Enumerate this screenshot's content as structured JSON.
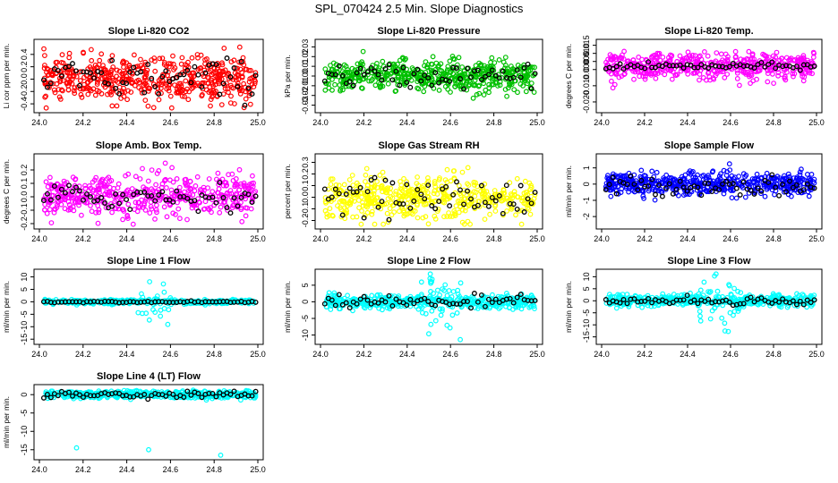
{
  "title": "SPL_070424  2.5 Min. Slope Diagnostics",
  "colors": {
    "red": "#ff0000",
    "green": "#00c000",
    "magenta": "#ff00ff",
    "yellow": "#ffff00",
    "blue": "#0000ff",
    "cyan": "#00ffff",
    "black": "#000000"
  },
  "chart_data": [
    {
      "type": "scatter",
      "title": "Slope Li-820 CO2",
      "ylabel": "Li cor ppm per min.",
      "color": "#ff0000",
      "xlim": [
        24.0,
        25.0
      ],
      "ylim": [
        -0.5,
        0.6
      ],
      "xticks": [
        24.0,
        24.2,
        24.4,
        24.6,
        24.8,
        25.0
      ],
      "xtick_labels": [
        "24.0",
        "24.2",
        "24.4",
        "24.6",
        "24.8",
        "25.0"
      ],
      "yticks": [
        -0.4,
        -0.2,
        0.0,
        0.2,
        0.4
      ],
      "ytick_labels": [
        "-0.4",
        "-0.2",
        "0.0",
        "0.2",
        "0.4"
      ],
      "n": 520,
      "center": 0.0,
      "spread": 0.18,
      "black_center": 0.0,
      "black_spread": 0.16
    },
    {
      "type": "scatter",
      "title": "Slope Li-820 Pressure",
      "ylabel": "kPa per min.",
      "color": "#00c000",
      "xlim": [
        24.0,
        25.0
      ],
      "ylim": [
        -0.035,
        0.035
      ],
      "xticks": [
        24.0,
        24.2,
        24.4,
        24.6,
        24.8,
        25.0
      ],
      "xtick_labels": [
        "24.0",
        "24.2",
        "24.4",
        "24.6",
        "24.8",
        "25.0"
      ],
      "yticks": [
        -0.03,
        -0.02,
        -0.01,
        0.0,
        0.01,
        0.02,
        0.03
      ],
      "ytick_labels": [
        "-0.03",
        "-0.02",
        "-0.01",
        "0.00",
        "0.01",
        "0.02",
        "0.03"
      ],
      "n": 520,
      "center": 0.0,
      "spread": 0.008,
      "black_center": 0.0,
      "black_spread": 0.006
    },
    {
      "type": "scatter",
      "title": "Slope Li-820 Temp.",
      "ylabel": "degrees C per min.",
      "color": "#ff00ff",
      "xlim": [
        24.0,
        25.0
      ],
      "ylim": [
        -0.025,
        0.017
      ],
      "xticks": [
        24.0,
        24.2,
        24.4,
        24.6,
        24.8,
        25.0
      ],
      "xtick_labels": [
        "24.0",
        "24.2",
        "24.4",
        "24.6",
        "24.8",
        "25.0"
      ],
      "yticks": [
        -0.02,
        -0.01,
        0.0,
        0.005,
        0.01,
        0.015
      ],
      "ytick_labels": [
        "-0.020",
        "-0.010",
        "0.000",
        "0.005",
        "0.010",
        "0.015"
      ],
      "n": 480,
      "center": 0.002,
      "spread": 0.004,
      "black_center": 0.002,
      "black_spread": 0.001
    },
    {
      "type": "scatter",
      "title": "Slope Amb. Box Temp.",
      "ylabel": "degrees C per min.",
      "color": "#ff00ff",
      "xlim": [
        24.0,
        25.0
      ],
      "ylim": [
        -0.22,
        0.3
      ],
      "xticks": [
        24.0,
        24.2,
        24.4,
        24.6,
        24.8,
        25.0
      ],
      "xtick_labels": [
        "24.0",
        "24.2",
        "24.4",
        "24.6",
        "24.8",
        "25.0"
      ],
      "yticks": [
        -0.2,
        -0.1,
        0.0,
        0.1,
        0.2
      ],
      "ytick_labels": [
        "-0.2",
        "-0.1",
        "0.0",
        "0.1",
        "0.2"
      ],
      "n": 480,
      "center": 0.0,
      "spread": 0.08,
      "black_center": 0.0,
      "black_spread": 0.05
    },
    {
      "type": "scatter",
      "title": "Slope Gas Stream RH",
      "ylabel": "percent per min.",
      "color": "#ffff00",
      "xlim": [
        24.0,
        25.0
      ],
      "ylim": [
        -0.25,
        0.35
      ],
      "xticks": [
        24.0,
        24.2,
        24.4,
        24.6,
        24.8,
        25.0
      ],
      "xtick_labels": [
        "24.0",
        "24.2",
        "24.4",
        "24.6",
        "24.8",
        "25.0"
      ],
      "yticks": [
        -0.2,
        -0.1,
        0.0,
        0.1,
        0.2,
        0.3
      ],
      "ytick_labels": [
        "-0.2",
        "-0.1",
        "0.0",
        "0.1",
        "0.2",
        "0.3"
      ],
      "n": 480,
      "center": 0.0,
      "spread": 0.09,
      "black_center": 0.0,
      "black_spread": 0.08
    },
    {
      "type": "scatter",
      "title": "Slope Sample Flow",
      "ylabel": "ml/min per min.",
      "color": "#0000ff",
      "xlim": [
        24.0,
        25.0
      ],
      "ylim": [
        -2.6,
        1.7
      ],
      "xticks": [
        24.0,
        24.2,
        24.4,
        24.6,
        24.8,
        25.0
      ],
      "xtick_labels": [
        "24.0",
        "24.2",
        "24.4",
        "24.6",
        "24.8",
        "25.0"
      ],
      "yticks": [
        -2,
        -1,
        0,
        1
      ],
      "ytick_labels": [
        "-2",
        "-1",
        "0",
        "1"
      ],
      "n": 520,
      "center": 0.0,
      "spread": 0.35,
      "black_center": -0.1,
      "black_spread": 0.3
    },
    {
      "type": "scatter",
      "title": "Slope Line 1 Flow",
      "ylabel": "ml/min per min.",
      "color": "#00ffff",
      "xlim": [
        24.0,
        25.0
      ],
      "ylim": [
        -16,
        12
      ],
      "xticks": [
        24.0,
        24.2,
        24.4,
        24.6,
        24.8,
        25.0
      ],
      "xtick_labels": [
        "24.0",
        "24.2",
        "24.4",
        "24.6",
        "24.8",
        "25.0"
      ],
      "yticks": [
        -15,
        -10,
        -5,
        0,
        5,
        10
      ],
      "ytick_labels": [
        "-15",
        "-10",
        "-5",
        "0",
        "5",
        "10"
      ],
      "n": 420,
      "center": 0.0,
      "spread": 0.4,
      "black_center": 0.0,
      "black_spread": 0.15,
      "burst": [
        24.45,
        24.65,
        5
      ]
    },
    {
      "type": "scatter",
      "title": "Slope Line 2 Flow",
      "ylabel": "ml/min per min.",
      "color": "#00ffff",
      "xlim": [
        24.0,
        25.0
      ],
      "ylim": [
        -12,
        9
      ],
      "xticks": [
        24.0,
        24.2,
        24.4,
        24.6,
        24.8,
        25.0
      ],
      "xtick_labels": [
        "24.0",
        "24.2",
        "24.4",
        "24.6",
        "24.8",
        "25.0"
      ],
      "yticks": [
        -10,
        -5,
        0,
        5
      ],
      "ytick_labels": [
        "-10",
        "-5",
        "0",
        "5"
      ],
      "n": 480,
      "center": 0.0,
      "spread": 1.0,
      "black_center": 0.0,
      "black_spread": 0.9,
      "burst": [
        24.45,
        24.65,
        5
      ]
    },
    {
      "type": "scatter",
      "title": "Slope Line 3 Flow",
      "ylabel": "ml/min per min.",
      "color": "#00ffff",
      "xlim": [
        24.0,
        25.0
      ],
      "ylim": [
        -17,
        12
      ],
      "xticks": [
        24.0,
        24.2,
        24.4,
        24.6,
        24.8,
        25.0
      ],
      "xtick_labels": [
        "24.0",
        "24.2",
        "24.4",
        "24.6",
        "24.8",
        "25.0"
      ],
      "yticks": [
        -15,
        -10,
        -5,
        0,
        5,
        10
      ],
      "ytick_labels": [
        "-15",
        "-10",
        "-5",
        "0",
        "5",
        "10"
      ],
      "n": 480,
      "center": 0.0,
      "spread": 1.2,
      "black_center": 0.0,
      "black_spread": 0.8,
      "burst": [
        24.45,
        24.65,
        6
      ]
    },
    {
      "type": "scatter",
      "title": "Slope Line 4 (LT) Flow",
      "ylabel": "ml/min per min.",
      "color": "#00ffff",
      "xlim": [
        24.0,
        25.0
      ],
      "ylim": [
        -17,
        2
      ],
      "xticks": [
        24.0,
        24.2,
        24.4,
        24.6,
        24.8,
        25.0
      ],
      "xtick_labels": [
        "24.0",
        "24.2",
        "24.4",
        "24.6",
        "24.8",
        "25.0"
      ],
      "yticks": [
        -15,
        -10,
        -5,
        0
      ],
      "ytick_labels": [
        "-15",
        "-10",
        "-5",
        "0"
      ],
      "n": 480,
      "center": 0.0,
      "spread": 0.5,
      "black_center": 0.0,
      "black_spread": 0.5,
      "outliers": [
        [
          24.17,
          -14.5
        ],
        [
          24.5,
          -15
        ],
        [
          24.83,
          -16.5
        ]
      ]
    }
  ]
}
